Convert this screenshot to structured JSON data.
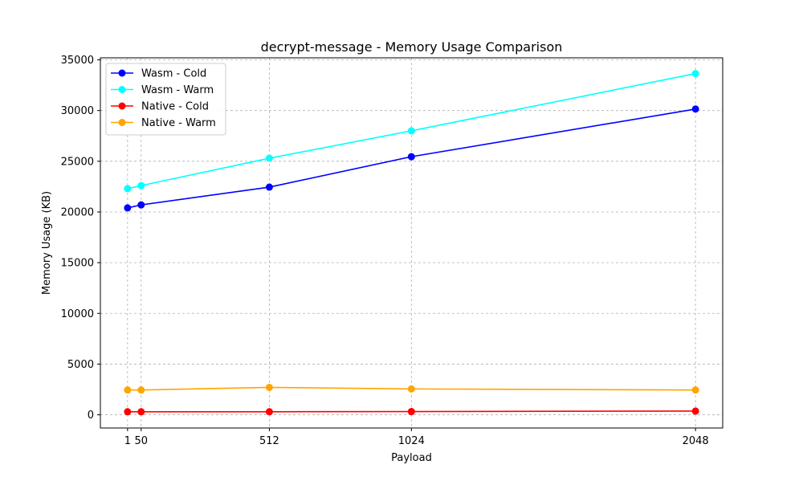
{
  "chart_data": {
    "type": "line",
    "title": "decrypt-message - Memory Usage Comparison",
    "xlabel": "Payload",
    "ylabel": "Memory Usage (KB)",
    "x": [
      1,
      50,
      512,
      1024,
      2048
    ],
    "x_ticks": [
      1,
      50,
      512,
      1024,
      2048
    ],
    "x_tick_labels": [
      "1",
      "50",
      "512",
      "1024",
      "2048"
    ],
    "xlim": [
      -97,
      2146
    ],
    "ylim": [
      -1300,
      35200
    ],
    "y_ticks": [
      0,
      5000,
      10000,
      15000,
      20000,
      25000,
      30000,
      35000
    ],
    "y_tick_labels": [
      "0",
      "5000",
      "10000",
      "15000",
      "20000",
      "25000",
      "30000",
      "35000"
    ],
    "grid": true,
    "legend_position": "upper-left",
    "series": [
      {
        "name": "Wasm - Cold",
        "color": "#0000ff",
        "values": [
          20400,
          20700,
          22450,
          25450,
          30150
        ]
      },
      {
        "name": "Wasm - Warm",
        "color": "#00ffff",
        "values": [
          22300,
          22600,
          25300,
          28000,
          33650
        ]
      },
      {
        "name": "Native - Cold",
        "color": "#ff0000",
        "values": [
          300,
          300,
          300,
          320,
          370
        ]
      },
      {
        "name": "Native - Warm",
        "color": "#ffa500",
        "values": [
          2450,
          2450,
          2700,
          2550,
          2450
        ]
      }
    ]
  }
}
